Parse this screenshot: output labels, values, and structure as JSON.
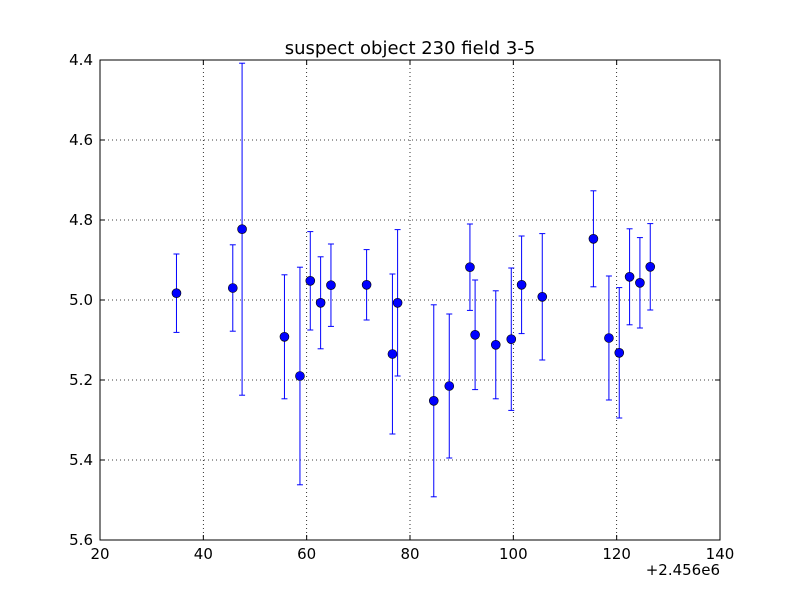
{
  "chart_data": {
    "type": "scatter",
    "title": "suspect object 230 field 3-5",
    "xlabel": "",
    "ylabel": "",
    "x_offset_label": "+2.456e6",
    "xlim": [
      20,
      140
    ],
    "ylim": [
      5.6,
      4.4
    ],
    "y_inverted": true,
    "grid": true,
    "x_ticks": [
      "20",
      "40",
      "60",
      "80",
      "100",
      "120",
      "140"
    ],
    "y_ticks": [
      "4.4",
      "4.6",
      "4.8",
      "5.0",
      "5.2",
      "5.4",
      "5.6"
    ],
    "colors": {
      "marker": "#0000ff",
      "errorbar": "#0000ff",
      "grid": "#000000"
    },
    "series": [
      {
        "points": [
          {
            "x": 2456034.8,
            "y": 4.983,
            "err": 0.098
          },
          {
            "x": 2456045.7,
            "y": 4.97,
            "err": 0.108
          },
          {
            "x": 2456047.5,
            "y": 4.823,
            "err": 0.415
          },
          {
            "x": 2456055.7,
            "y": 5.092,
            "err": 0.155
          },
          {
            "x": 2456058.7,
            "y": 5.19,
            "err": 0.272
          },
          {
            "x": 2456060.7,
            "y": 4.952,
            "err": 0.123
          },
          {
            "x": 2456062.7,
            "y": 5.007,
            "err": 0.115
          },
          {
            "x": 2456064.7,
            "y": 4.963,
            "err": 0.103
          },
          {
            "x": 2456071.6,
            "y": 4.962,
            "err": 0.088
          },
          {
            "x": 2456076.6,
            "y": 5.135,
            "err": 0.2
          },
          {
            "x": 2456077.6,
            "y": 5.007,
            "err": 0.183
          },
          {
            "x": 2456084.6,
            "y": 5.252,
            "err": 0.24
          },
          {
            "x": 2456087.6,
            "y": 5.215,
            "err": 0.18
          },
          {
            "x": 2456091.6,
            "y": 4.918,
            "err": 0.108
          },
          {
            "x": 2456092.6,
            "y": 5.087,
            "err": 0.137
          },
          {
            "x": 2456096.6,
            "y": 5.112,
            "err": 0.135
          },
          {
            "x": 2456099.6,
            "y": 5.098,
            "err": 0.178
          },
          {
            "x": 2456101.6,
            "y": 4.962,
            "err": 0.122
          },
          {
            "x": 2456105.6,
            "y": 4.992,
            "err": 0.158
          },
          {
            "x": 2456115.5,
            "y": 4.847,
            "err": 0.12
          },
          {
            "x": 2456118.5,
            "y": 5.095,
            "err": 0.155
          },
          {
            "x": 2456120.5,
            "y": 5.132,
            "err": 0.163
          },
          {
            "x": 2456122.5,
            "y": 4.942,
            "err": 0.12
          },
          {
            "x": 2456124.5,
            "y": 4.957,
            "err": 0.113
          },
          {
            "x": 2456126.5,
            "y": 4.917,
            "err": 0.108
          }
        ]
      }
    ]
  }
}
